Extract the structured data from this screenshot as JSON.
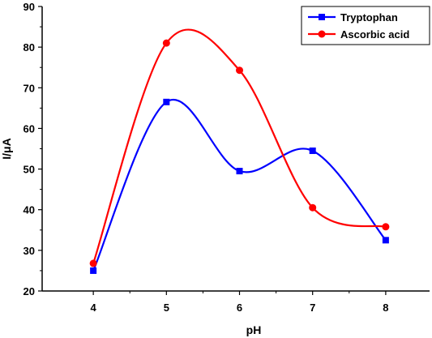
{
  "chart_data": {
    "type": "line",
    "title": "",
    "xlabel": "pH",
    "ylabel": "I/μA",
    "xlim": [
      3.3,
      8.6
    ],
    "ylim": [
      20,
      90
    ],
    "x_ticks": [
      4,
      5,
      6,
      7,
      8
    ],
    "y_ticks": [
      20,
      30,
      40,
      50,
      60,
      70,
      80,
      90
    ],
    "x_tick_labels": [
      "4",
      "5",
      "6",
      "7",
      "8"
    ],
    "y_tick_labels": [
      "20",
      "30",
      "40",
      "50",
      "60",
      "70",
      "80",
      "90"
    ],
    "grid": false,
    "smooth": true,
    "legend_position": "top-right",
    "series": [
      {
        "name": "Tryptophan",
        "color": "#0000ff",
        "marker": "square",
        "x": [
          4,
          5,
          6,
          7,
          8
        ],
        "values": [
          25,
          66.5,
          49.5,
          54.5,
          32.5
        ]
      },
      {
        "name": "Ascorbic acid",
        "color": "#ff0000",
        "marker": "circle",
        "x": [
          4,
          5,
          6,
          7,
          8
        ],
        "values": [
          26.8,
          81,
          74.3,
          40.5,
          35.8
        ]
      }
    ]
  }
}
